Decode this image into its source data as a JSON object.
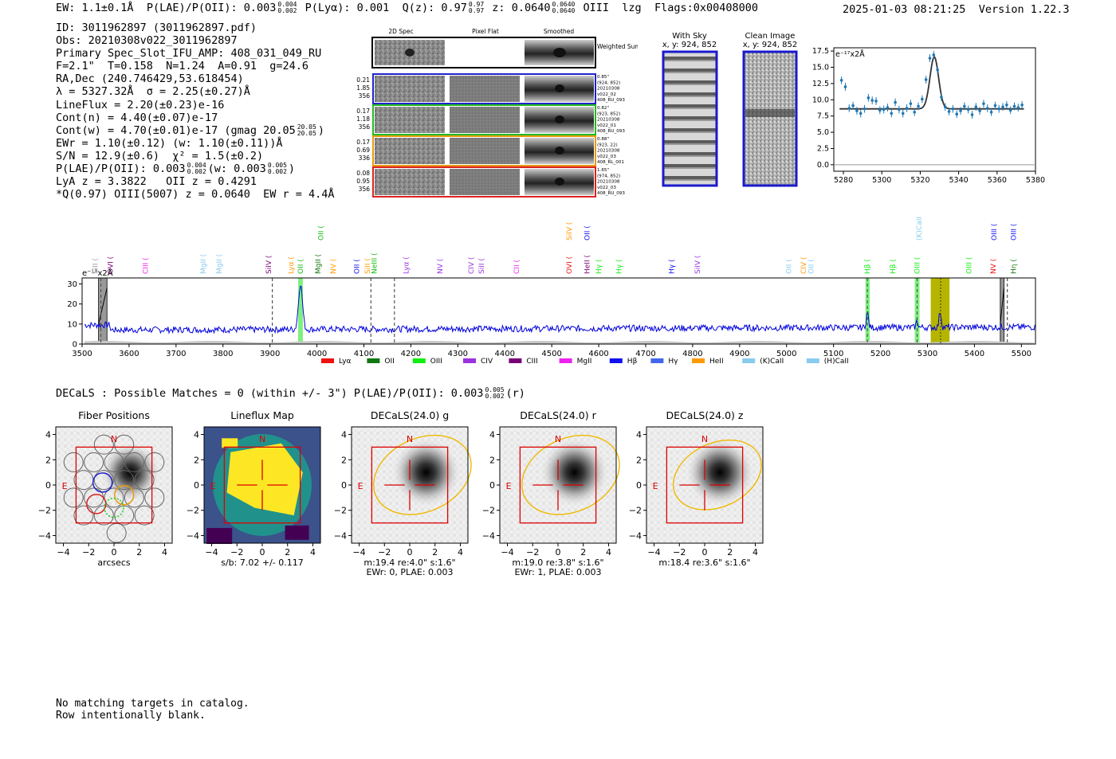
{
  "header": {
    "ew": "EW: 1.1±0.1Å",
    "plae_label": "P(LAE)/P(OII):",
    "plae_value": "0.003",
    "plae_hi": "0.004",
    "plae_lo": "0.002",
    "plya_label": "P(Lyα):",
    "plya_value": "0.001",
    "q_label": "Q(z):",
    "q_value": "0.97",
    "q_hi": "0.97",
    "q_lo": "0.97",
    "z_label": "z:",
    "z_value": "0.0640",
    "z_hi": "0.0640",
    "z_lo": "0.0640",
    "line": "OIII",
    "tag": "lzg",
    "flags": "Flags:0x00408000",
    "timestamp": "2025-01-03 08:21:25",
    "version": "Version 1.22.3"
  },
  "info": {
    "id": "ID: 3011962897 (3011962897.pdf)",
    "obs": "Obs: 20210308v022_3011962897",
    "primary": "Primary Spec_Slot_IFU_AMP: 408_031_049_RU",
    "fiber": "F=2.1\"  T=0.158  N=1.24  A=0.91  g=24.6",
    "radec": "RA,Dec (240.746429,53.618454)",
    "lambda": "λ = 5327.32Å  σ = 2.25(±0.27)Å",
    "lineflux": "LineFlux = 2.20(±0.23)e-16",
    "cont_n": "Cont(n) = 4.40(±0.07)e-17",
    "cont_w": "Cont(w) = 4.70(±0.01)e-17 (gmag 20.05",
    "gmag_hi": "20.05",
    "gmag_lo": "20.05",
    "ewr": "EWr = 1.10(±0.12) (w: 1.10(±0.11))Å",
    "sn": "S/N = 12.9(±0.6)  χ² = 1.5(±0.2)",
    "plae": "P(LAE)/P(OII): 0.003",
    "plae_hi": "0.004",
    "plae_lo": "0.002",
    "plae_w": "(w: 0.003",
    "plae_w_hi": "0.005",
    "plae_w_lo": "0.002",
    "lya": "LyA z = 3.3822   OII z = 0.4291",
    "q": "*Q(0.97) OIII(5007) z = 0.0640  EW r = 4.4Å"
  },
  "cutouts": {
    "col_titles": [
      "2D Spec",
      "Pixel Flat",
      "Smoothed"
    ],
    "weighted_label": "Weighted Sum",
    "rows": [
      {
        "left": [
          "0.21",
          "1.85",
          "356"
        ],
        "right": [
          "0.85\"",
          "(924, 852)",
          "20210308",
          "v022_02",
          "408_RU_093"
        ],
        "color": "#2222cc"
      },
      {
        "left": [
          "0.17",
          "1.18",
          "356"
        ],
        "right": [
          "0.82\"",
          "(923, 852)",
          "20210308",
          "v022_01",
          "408_RU_093"
        ],
        "color": "#22bb22"
      },
      {
        "left": [
          "0.17",
          "0.69",
          "336"
        ],
        "right": [
          "0.88\"",
          "(923, 22)",
          "20210308",
          "v022_03",
          "408_RL_001"
        ],
        "color": "#e89a10"
      },
      {
        "left": [
          "0.08",
          "0.95",
          "356"
        ],
        "right": [
          "1.65\"",
          "(974, 852)",
          "20210308",
          "v022_03",
          "408_RU_093"
        ],
        "color": "#dd2222"
      }
    ]
  },
  "sky": {
    "with_sky_title": "With Sky",
    "with_sky_coords": "x, y: 924, 852",
    "clean_title": "Clean Image",
    "clean_coords": "x, y: 924, 852"
  },
  "zoom_chart": {
    "ylabel": "e⁻¹⁷x2Å",
    "xlim": [
      5275,
      5380
    ],
    "ylim": [
      -1,
      18
    ],
    "xticks": [
      5280,
      5300,
      5320,
      5340,
      5360,
      5380
    ],
    "yticks": [
      "0.0",
      "2.5",
      "5.0",
      "7.5",
      "10.0",
      "12.5",
      "15.0",
      "17.5"
    ],
    "fit_continuum": 8.6,
    "fit_peak": 16.6,
    "fit_center": 5327.3,
    "fit_sigma": 2.25,
    "points_x": [
      5279,
      5281,
      5283,
      5285,
      5287,
      5289,
      5291,
      5293,
      5295,
      5297,
      5299,
      5301,
      5303,
      5305,
      5307,
      5309,
      5311,
      5313,
      5315,
      5317,
      5319,
      5321,
      5323,
      5325,
      5327,
      5329,
      5331,
      5333,
      5335,
      5337,
      5339,
      5341,
      5343,
      5345,
      5347,
      5349,
      5351,
      5353,
      5355,
      5357,
      5359,
      5361,
      5363,
      5365,
      5367,
      5369,
      5371,
      5373
    ],
    "points_y": [
      13.0,
      12.0,
      8.7,
      9.1,
      8.3,
      7.9,
      8.6,
      10.3,
      9.9,
      9.8,
      8.4,
      8.5,
      8.8,
      7.9,
      9.6,
      8.5,
      7.9,
      8.7,
      9.4,
      8.1,
      9.0,
      10.1,
      13.1,
      16.4,
      16.9,
      14.6,
      10.4,
      8.9,
      8.2,
      8.6,
      7.8,
      8.3,
      9.0,
      8.5,
      7.7,
      8.9,
      8.3,
      9.4,
      8.7,
      8.1,
      9.1,
      8.6,
      8.9,
      9.2,
      8.4,
      9.0,
      8.8,
      9.2
    ]
  },
  "chart_data": {
    "type": "line",
    "title": "",
    "ylabel": "e⁻¹⁷x2Å",
    "xlim": [
      3500,
      5530
    ],
    "ylim": [
      0,
      33
    ],
    "xticks": [
      3500,
      3600,
      3700,
      3800,
      3900,
      4000,
      4100,
      4200,
      4300,
      4400,
      4500,
      4600,
      4700,
      4800,
      4900,
      5000,
      5100,
      5200,
      5300,
      5400,
      5500
    ],
    "yticks": [
      0,
      10,
      20,
      30
    ],
    "flux_features": [
      {
        "center": 3965,
        "width": 4.2,
        "amp": 23
      },
      {
        "center": 5172,
        "width": 2.4,
        "amp": 7.5
      },
      {
        "center": 5278,
        "width": 2.2,
        "amp": 3.2
      },
      {
        "center": 5327,
        "width": 2.25,
        "amp": 8
      }
    ],
    "continuum_start": 7,
    "continuum_end": 8.5,
    "green_bands": [
      [
        3960,
        3970
      ],
      [
        5168,
        5177
      ],
      [
        5273,
        5283
      ]
    ],
    "olive_band": [
      5307,
      5347
    ],
    "gray_bands": [
      [
        3535,
        3553
      ],
      [
        5455,
        5463
      ]
    ],
    "dashed_lines": [
      3540,
      3905,
      4115,
      4165,
      5172,
      5278,
      5470
    ],
    "dotted_line": 5328,
    "legend": [
      {
        "label": "Lyα",
        "color": "#ee1111"
      },
      {
        "label": "OII",
        "color": "#117711"
      },
      {
        "label": "OIII",
        "color": "#11ee11"
      },
      {
        "label": "CIV",
        "color": "#9933dd"
      },
      {
        "label": "CIII",
        "color": "#770077"
      },
      {
        "label": "MgII",
        "color": "#ee22ee"
      },
      {
        "label": "Hβ",
        "color": "#1111ee"
      },
      {
        "label": "Hγ",
        "color": "#4466ee"
      },
      {
        "label": "HeII",
        "color": "#ff9900"
      },
      {
        "label": "(K)CaII",
        "color": "#88ccee"
      },
      {
        "label": "(H)CaII",
        "color": "#88ccee"
      }
    ],
    "line_labels": [
      {
        "text": "SiII",
        "wave": 3528,
        "color": "#a0a0a0",
        "row": 1
      },
      {
        "text": "OVI",
        "wave": 3560,
        "color": "#770077",
        "row": 1
      },
      {
        "text": "CIII",
        "wave": 3635,
        "color": "#ee22ee",
        "row": 1
      },
      {
        "text": "MgII",
        "wave": 3758,
        "color": "#88ccee",
        "row": 1
      },
      {
        "text": "MgII",
        "wave": 3792,
        "color": "#88ccee",
        "row": 1
      },
      {
        "text": "SiIV",
        "wave": 3897,
        "color": "#770077",
        "row": 1
      },
      {
        "text": "Lyα",
        "wave": 3945,
        "color": "#ff9900",
        "row": 1
      },
      {
        "text": "OII",
        "wave": 3965,
        "color": "#11bb11",
        "row": 1
      },
      {
        "text": "OII",
        "wave": 4008,
        "color": "#11bb11",
        "row": 0
      },
      {
        "text": "MgII",
        "wave": 4002,
        "color": "#117711",
        "row": 1
      },
      {
        "text": "NV",
        "wave": 4035,
        "color": "#ff9900",
        "row": 1
      },
      {
        "text": "OII",
        "wave": 4085,
        "color": "#1111ee",
        "row": 1
      },
      {
        "text": "SiII",
        "wave": 4108,
        "color": "#ff9900",
        "row": 1
      },
      {
        "text": "NeIII",
        "wave": 4122,
        "color": "#11bb11",
        "row": 1
      },
      {
        "text": "Lyα",
        "wave": 4190,
        "color": "#9933dd",
        "row": 1
      },
      {
        "text": "NV",
        "wave": 4262,
        "color": "#9933dd",
        "row": 1
      },
      {
        "text": "CIV",
        "wave": 4328,
        "color": "#9933dd",
        "row": 1
      },
      {
        "text": "SiII",
        "wave": 4350,
        "color": "#9933dd",
        "row": 1
      },
      {
        "text": "CII",
        "wave": 4425,
        "color": "#ee22ee",
        "row": 1
      },
      {
        "text": "SiIV",
        "wave": 4537,
        "color": "#ff9900",
        "row": 0
      },
      {
        "text": "OVI",
        "wave": 4537,
        "color": "#ee1111",
        "row": 1
      },
      {
        "text": "OII",
        "wave": 4575,
        "color": "#1111ee",
        "row": 0
      },
      {
        "text": "HeII",
        "wave": 4575,
        "color": "#770077",
        "row": 1
      },
      {
        "text": "Hγ",
        "wave": 4600,
        "color": "#11ee11",
        "row": 1
      },
      {
        "text": "Hγ",
        "wave": 4643,
        "color": "#11ee11",
        "row": 1
      },
      {
        "text": "Hγ",
        "wave": 4755,
        "color": "#1111ee",
        "row": 1
      },
      {
        "text": "SiIV",
        "wave": 4810,
        "color": "#9933dd",
        "row": 1
      },
      {
        "text": "OII",
        "wave": 5005,
        "color": "#88ccee",
        "row": 1
      },
      {
        "text": "CIV",
        "wave": 5036,
        "color": "#ff9900",
        "row": 1
      },
      {
        "text": "OII",
        "wave": 5052,
        "color": "#88ccee",
        "row": 1
      },
      {
        "text": "(K)CaII",
        "wave": 5282,
        "color": "#88ccee",
        "row": 0
      },
      {
        "text": "Hβ",
        "wave": 5172,
        "color": "#11ee11",
        "row": 1
      },
      {
        "text": "Hβ",
        "wave": 5226,
        "color": "#11ee11",
        "row": 1
      },
      {
        "text": "OIII",
        "wave": 5278,
        "color": "#11ee11",
        "row": 1
      },
      {
        "text": "OIII",
        "wave": 5388,
        "color": "#11ee11",
        "row": 1
      },
      {
        "text": "NV",
        "wave": 5440,
        "color": "#ee1111",
        "row": 1
      },
      {
        "text": "OIII",
        "wave": 5442,
        "color": "#1111ee",
        "row": 0
      },
      {
        "text": "OIII",
        "wave": 5483,
        "color": "#1111ee",
        "row": 0
      },
      {
        "text": "Hη",
        "wave": 5483,
        "color": "#117711",
        "row": 1
      }
    ]
  },
  "decals": {
    "line": "DECaLS : Possible Matches = 0 (within +/- 3\")  P(LAE)/P(OII): 0.003",
    "frac_hi": "0.005",
    "frac_lo": "0.002",
    "band": "(r)",
    "north": "N",
    "east": "E",
    "ticks": [
      "−4",
      "−2",
      "0",
      "2",
      "4"
    ],
    "panels": [
      {
        "title": "Fiber Positions",
        "cap1": "arcsecs",
        "cap2": ""
      },
      {
        "title": "Lineflux Map",
        "cap1": "s/b: 7.02 +/- 0.117",
        "cap2": ""
      },
      {
        "title": "DECaLS(24.0) g",
        "cap1": "m:19.4  re:4.0\"  s:1.6\"",
        "cap2": "EWr: 0, PLAE: 0.003"
      },
      {
        "title": "DECaLS(24.0) r",
        "cap1": "m:19.0  re:3.8\"  s:1.6\"",
        "cap2": "EWr: 1, PLAE: 0.003"
      },
      {
        "title": "DECaLS(24.0) z",
        "cap1": "m:18.4  re:3.6\"  s:1.6\"",
        "cap2": ""
      }
    ]
  },
  "catalog": {
    "line1": "No matching targets in catalog.",
    "line2": "Row intentionally blank."
  },
  "colors": {
    "spectrum": "#0000dd",
    "fit": "#333333",
    "points": "#1f77b4",
    "crosshair": "#dd0000",
    "ellipse": "#f0b800",
    "fiber_highlight_blue": "#2222cc",
    "fiber_highlight_orange": "#e89a10",
    "fiber_highlight_red": "#dd2222",
    "fiber_highlight_green": "#22cc22"
  }
}
